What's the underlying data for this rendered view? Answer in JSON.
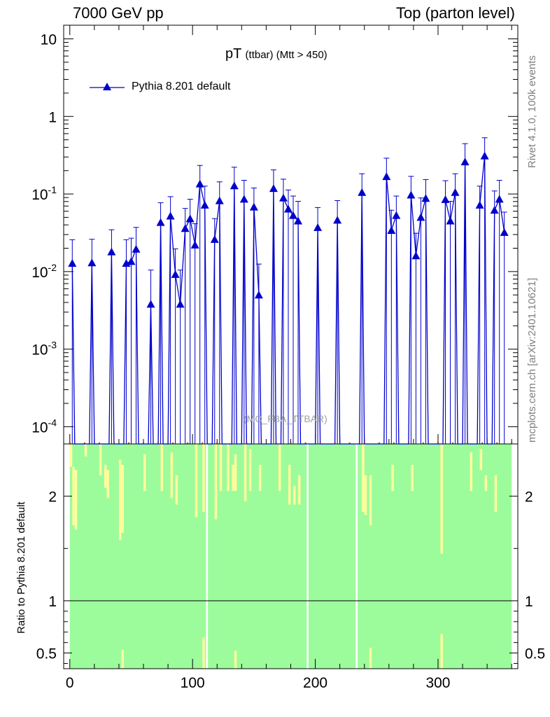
{
  "header": {
    "left": "7000 GeV pp",
    "right": "Top (parton level)"
  },
  "plot_title": {
    "main": "pT",
    "sub": "(ttbar) (Mtt > 450)"
  },
  "side_labels": {
    "rivet": "Rivet 4.1.0,  100k events",
    "mcplots": "mcplots.cern.ch [arXiv:2401.10621]"
  },
  "watermark": "(MC_FBA_TTBAR)",
  "colors": {
    "series": "#0000cc",
    "band_inner": "#9cfc9c",
    "band_outer": "#fffc9c"
  },
  "chart_data": [
    {
      "type": "line",
      "yscale": "log",
      "ylim": [
        6e-05,
        15
      ],
      "xlim": [
        -5,
        365
      ],
      "ytick_labels": [
        "10",
        "1",
        "10^-1",
        "10^-2",
        "10^-3",
        "10^-4"
      ],
      "grid": false,
      "legend_position": "top-left",
      "series": [
        {
          "name": "Pythia 8.201 default",
          "marker": "triangle-up",
          "x": [
            2,
            18,
            34,
            46,
            50,
            54,
            66,
            74,
            82,
            86,
            90,
            94,
            98,
            102,
            106,
            110,
            118,
            122,
            134,
            142,
            150,
            154,
            166,
            174,
            178,
            182,
            186,
            202,
            218,
            238,
            258,
            262,
            266,
            278,
            282,
            286,
            290,
            306,
            310,
            314,
            322,
            334,
            338,
            346,
            350,
            354
          ],
          "y": [
            0.0128,
            0.013,
            0.018,
            0.0128,
            0.0135,
            0.0195,
            0.0038,
            0.043,
            0.052,
            0.0092,
            0.0038,
            0.036,
            0.048,
            0.022,
            0.135,
            0.072,
            0.026,
            0.082,
            0.128,
            0.086,
            0.068,
            0.005,
            0.118,
            0.089,
            0.064,
            0.053,
            0.045,
            0.037,
            0.046,
            0.105,
            0.168,
            0.034,
            0.053,
            0.097,
            0.016,
            0.05,
            0.088,
            0.085,
            0.045,
            0.105,
            0.26,
            0.072,
            0.31,
            0.062,
            0.086,
            0.032
          ]
        }
      ]
    },
    {
      "type": "area",
      "ylabel": "Ratio to Pythia 8.201 default",
      "ylim": [
        0.35,
        2.5
      ],
      "xlim": [
        -5,
        365
      ],
      "xticks": [
        0,
        100,
        200,
        300
      ],
      "yticks": [
        0.5,
        1,
        2
      ],
      "reference_line": 1
    }
  ]
}
